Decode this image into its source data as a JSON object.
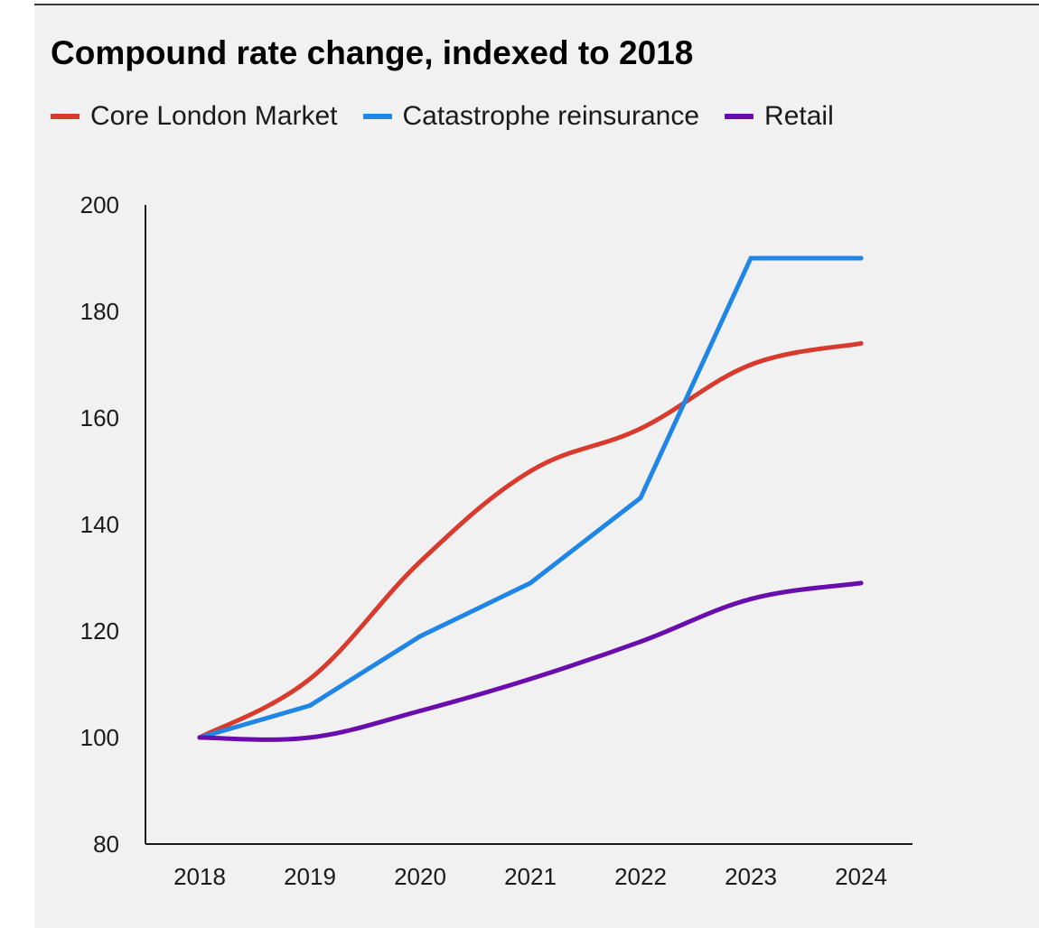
{
  "chart_data": {
    "type": "line",
    "title": "Compound rate change, indexed to 2018",
    "xlabel": "",
    "ylabel": "",
    "x": [
      "2018",
      "2019",
      "2020",
      "2021",
      "2022",
      "2023",
      "2024"
    ],
    "ylim": [
      80,
      200
    ],
    "yticks": [
      "80",
      "100",
      "120",
      "140",
      "160",
      "180",
      "200"
    ],
    "grid": false,
    "legend_position": "top-left",
    "series": [
      {
        "name": "Core London Market",
        "color": "#d83b2d",
        "values": [
          100,
          111,
          133,
          150,
          158,
          170,
          174
        ]
      },
      {
        "name": "Catastrophe reinsurance",
        "color": "#1f85e6",
        "values": [
          100,
          106,
          119,
          129,
          145,
          190,
          190
        ]
      },
      {
        "name": "Retail",
        "color": "#6a0dad",
        "values": [
          100,
          100,
          105,
          111,
          118,
          126,
          129
        ]
      }
    ]
  }
}
